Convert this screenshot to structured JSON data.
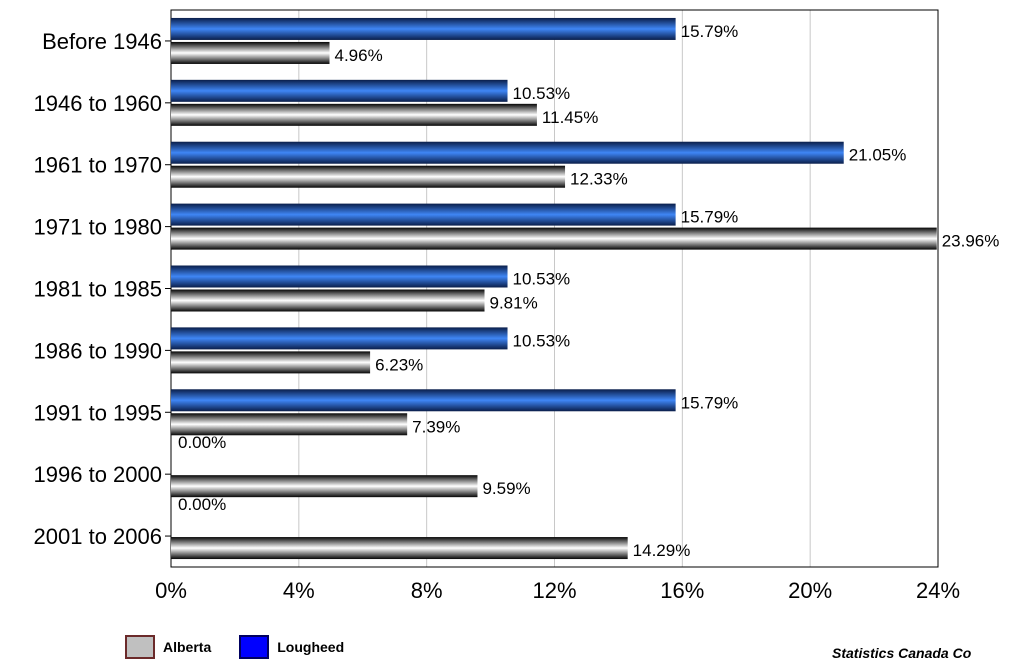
{
  "chart_data": {
    "type": "bar",
    "orientation": "horizontal",
    "categories": [
      "Before 1946",
      "1946 to 1960",
      "1961 to 1970",
      "1971 to 1980",
      "1981 to 1985",
      "1986 to 1990",
      "1991 to 1995",
      "1996 to 2000",
      "2001 to 2006"
    ],
    "series": [
      {
        "name": "Lougheed",
        "color": "#2f6fe0",
        "values": [
          15.79,
          10.53,
          21.05,
          15.79,
          10.53,
          10.53,
          15.79,
          0.0,
          0.0
        ],
        "labels": [
          "15.79%",
          "10.53%",
          "21.05%",
          "15.79%",
          "10.53%",
          "10.53%",
          "15.79%",
          "0.00%",
          "0.00%"
        ]
      },
      {
        "name": "Alberta",
        "color": "#c0c0c0",
        "values": [
          4.96,
          11.45,
          12.33,
          23.96,
          9.81,
          6.23,
          7.39,
          9.59,
          14.29
        ],
        "labels": [
          "4.96%",
          "11.45%",
          "12.33%",
          "23.96%",
          "9.81%",
          "6.23%",
          "7.39%",
          "9.59%",
          "14.29%"
        ]
      }
    ],
    "xlim": [
      0,
      24
    ],
    "xticks": [
      "0%",
      "4%",
      "8%",
      "12%",
      "16%",
      "20%",
      "24%"
    ],
    "grid": true,
    "legend_placement": "bottom-left"
  },
  "legend": {
    "alberta_label": "Alberta",
    "alberta_color": "#c0c0c0",
    "lougheed_label": "Lougheed",
    "lougheed_color": "#0000ff"
  },
  "source": "Statistics Canada Co"
}
